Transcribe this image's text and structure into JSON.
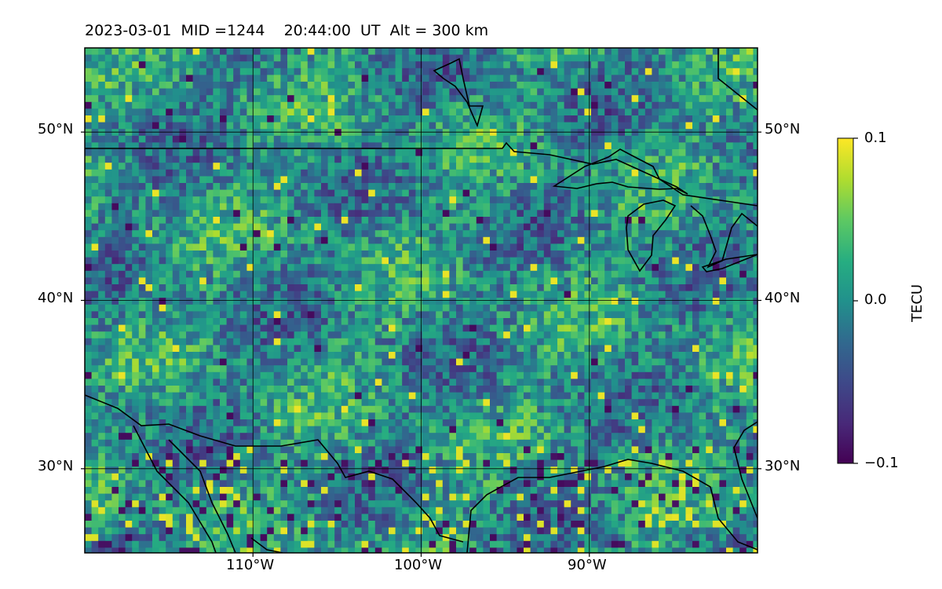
{
  "title": "2023-03-01  MID =1244    20:44:00  UT  Alt = 300 km",
  "map": {
    "lon_range": [
      -120,
      -80
    ],
    "lat_range": [
      25,
      55
    ],
    "lat_ticks": [
      {
        "value": 50,
        "label": "50°N"
      },
      {
        "value": 40,
        "label": "40°N"
      },
      {
        "value": 30,
        "label": "30°N"
      }
    ],
    "lon_ticks": [
      {
        "value": -110,
        "label": "110°W"
      },
      {
        "value": -100,
        "label": "100°W"
      },
      {
        "value": -90,
        "label": "90°W"
      }
    ],
    "grid": true,
    "colormap": "viridis",
    "colors": {
      "low": "#440154",
      "mid": "#21918c",
      "high": "#fde725"
    }
  },
  "colorbar": {
    "label": "TECU",
    "min": -0.1,
    "max": 0.1,
    "ticks": [
      {
        "value": 0.1,
        "label": "0.1"
      },
      {
        "value": 0.0,
        "label": "0.0"
      },
      {
        "value": -0.1,
        "label": "−0.1"
      }
    ]
  }
}
